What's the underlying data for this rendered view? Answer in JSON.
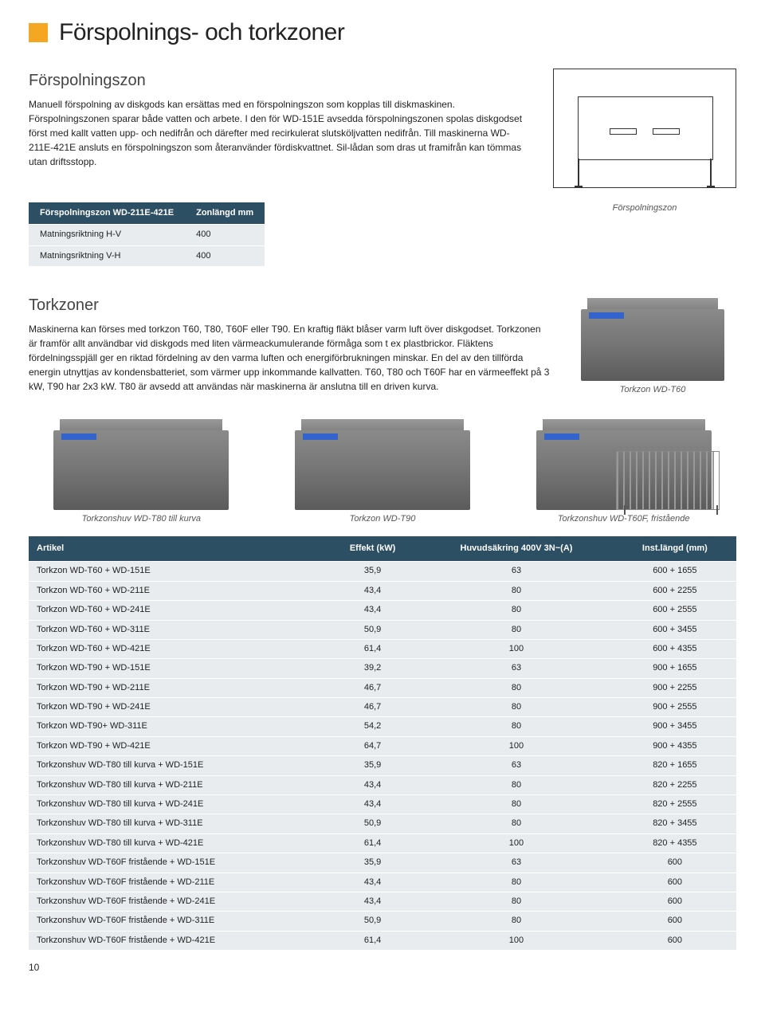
{
  "colors": {
    "accent_square": "#f5a623",
    "table_header_bg": "#2d4f63",
    "table_header_fg": "#ffffff",
    "table_row_bg": "#e8ecef",
    "machine_stripe": "#3363cc"
  },
  "title": "Förspolnings- och torkzoner",
  "section1": {
    "heading": "Förspolningszon",
    "body": "Manuell förspolning av diskgods kan ersättas med en förspolningszon som kopplas till diskmaskinen. Förspolningszonen sparar både vatten och arbete. I den för WD-151E avsedda förspolningszonen spolas diskgodset först med kallt vatten upp- och nedifrån och därefter med recirkulerat slutsköljvatten nedifrån. Till maskinerna WD-211E-421E ansluts en förspolningszon som återanvänder fördiskvattnet. Sil-lådan som dras ut framifrån kan tömmas utan driftsstopp.",
    "diagram_caption": "Förspolningszon"
  },
  "table1": {
    "headers": [
      "Förspolningszon WD-211E-421E",
      "Zonlängd mm"
    ],
    "rows": [
      [
        "Matningsriktning H-V",
        "400"
      ],
      [
        "Matningsriktning V-H",
        "400"
      ]
    ]
  },
  "section2": {
    "heading": "Torkzoner",
    "body": "Maskinerna kan förses med torkzon T60, T80, T60F eller T90. En kraftig fläkt blåser varm luft över diskgodset. Torkzonen är framför allt användbar vid diskgods med liten värmeackumulerande förmåga som t ex plastbrickor. Fläktens fördelningsspjäll ger en riktad fördelning av den varma luften och energiförbrukningen minskar. En del av den tillförda energin utnyttjas av kondensbatteriet, som värmer upp inkommande kallvatten. T60, T80 och T60F har en värmeeffekt på 3 kW, T90 har 2x3 kW. T80 är avsedd att användas när maskinerna är anslutna till en driven kurva.",
    "image_caption": "Torkzon WD-T60"
  },
  "three_up_captions": [
    "Torkzonshuv WD-T80 till kurva",
    "Torkzon WD-T90",
    "Torkzonshuv WD-T60F, fristående"
  ],
  "big_table": {
    "headers": [
      "Artikel",
      "Effekt (kW)",
      "Huvudsäkring 400V 3N~(A)",
      "Inst.längd (mm)"
    ],
    "rows": [
      [
        "Torkzon WD-T60 + WD-151E",
        "35,9",
        "63",
        "600 + 1655"
      ],
      [
        "Torkzon WD-T60 + WD-211E",
        "43,4",
        "80",
        "600 + 2255"
      ],
      [
        "Torkzon WD-T60 + WD-241E",
        "43,4",
        "80",
        "600 + 2555"
      ],
      [
        "Torkzon WD-T60 + WD-311E",
        "50,9",
        "80",
        "600 + 3455"
      ],
      [
        "Torkzon WD-T60 + WD-421E",
        "61,4",
        "100",
        "600 + 4355"
      ],
      [
        "Torkzon WD-T90 + WD-151E",
        "39,2",
        "63",
        "900 + 1655"
      ],
      [
        "Torkzon WD-T90 + WD-211E",
        "46,7",
        "80",
        "900 + 2255"
      ],
      [
        "Torkzon WD-T90 + WD-241E",
        "46,7",
        "80",
        "900 + 2555"
      ],
      [
        "Torkzon WD-T90+ WD-311E",
        "54,2",
        "80",
        "900 + 3455"
      ],
      [
        "Torkzon WD-T90 + WD-421E",
        "64,7",
        "100",
        "900 + 4355"
      ],
      [
        "Torkzonshuv WD-T80 till kurva + WD-151E",
        "35,9",
        "63",
        "820 + 1655"
      ],
      [
        "Torkzonshuv WD-T80 till kurva + WD-211E",
        "43,4",
        "80",
        "820 + 2255"
      ],
      [
        "Torkzonshuv WD-T80 till kurva + WD-241E",
        "43,4",
        "80",
        "820 + 2555"
      ],
      [
        "Torkzonshuv WD-T80 till kurva + WD-311E",
        "50,9",
        "80",
        "820 + 3455"
      ],
      [
        "Torkzonshuv WD-T80 till kurva + WD-421E",
        "61,4",
        "100",
        "820 + 4355"
      ],
      [
        "Torkzonshuv WD-T60F fristående + WD-151E",
        "35,9",
        "63",
        "600"
      ],
      [
        "Torkzonshuv WD-T60F fristående + WD-211E",
        "43,4",
        "80",
        "600"
      ],
      [
        "Torkzonshuv WD-T60F fristående + WD-241E",
        "43,4",
        "80",
        "600"
      ],
      [
        "Torkzonshuv WD-T60F fristående + WD-311E",
        "50,9",
        "80",
        "600"
      ],
      [
        "Torkzonshuv WD-T60F fristående + WD-421E",
        "61,4",
        "100",
        "600"
      ]
    ]
  },
  "page_number": "10"
}
